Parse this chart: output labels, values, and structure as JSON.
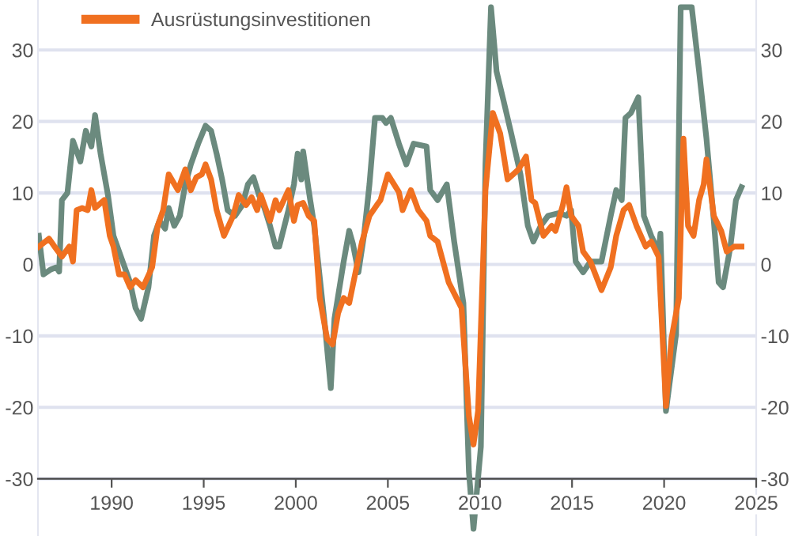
{
  "chart_data": {
    "type": "line",
    "xlim": [
      1986,
      2025
    ],
    "xticks": [
      1990,
      1995,
      2000,
      2005,
      2010,
      2015,
      2020,
      2025
    ],
    "ylim": [
      -38,
      37
    ],
    "yticks": [
      -30,
      -20,
      -10,
      0,
      10,
      20,
      30
    ],
    "y2lim": [
      -38,
      37
    ],
    "y2ticks": [
      -30,
      -20,
      -10,
      0,
      10,
      20,
      30
    ],
    "grid": "y",
    "legend": "top left",
    "line_style": "solid",
    "marker": "none",
    "series": [
      {
        "color": "#6b8a7e",
        "x": [
          1986.05,
          1986.3,
          1986.7,
          1987.0,
          1987.15,
          1987.3,
          1987.6,
          1987.9,
          1988.3,
          1988.6,
          1988.9,
          1989.1,
          1989.4,
          1989.8,
          1990.1,
          1990.6,
          1991.0,
          1991.3,
          1991.6,
          1992.0,
          1992.3,
          1992.6,
          1992.9,
          1993.1,
          1993.4,
          1993.7,
          1994.0,
          1994.3,
          1994.7,
          1995.1,
          1995.4,
          1995.7,
          1996.0,
          1996.3,
          1996.7,
          1997.1,
          1997.4,
          1997.7,
          1998.0,
          1998.3,
          1998.6,
          1998.9,
          1999.1,
          1999.6,
          1999.9,
          2000.1,
          2000.3,
          2000.4,
          2000.7,
          2001.0,
          2001.3,
          2001.6,
          2001.9,
          2002.1,
          2002.6,
          2002.9,
          2003.1,
          2003.4,
          2003.7,
          2004.0,
          2004.3,
          2004.7,
          2004.9,
          2005.16,
          2005.6,
          2006.0,
          2006.4,
          2007.1,
          2007.3,
          2007.7,
          2008.2,
          2008.6,
          2009.1,
          2009.4,
          2009.65,
          2010.05,
          2010.3,
          2010.6,
          2010.9,
          2011.3,
          2011.7,
          2012.2,
          2012.6,
          2012.9,
          2013.3,
          2013.7,
          2014.3,
          2014.7,
          2014.95,
          2015.2,
          2015.6,
          2016.0,
          2016.6,
          2017.1,
          2017.4,
          2017.7,
          2017.9,
          2018.2,
          2018.6,
          2018.9,
          2019.3,
          2019.7,
          2019.8,
          2020.1,
          2020.65,
          2020.9,
          2021.5,
          2021.9,
          2022.3,
          2022.7,
          2022.96,
          2023.2,
          2023.6,
          2023.9,
          2024.2
        ],
        "values": [
          4,
          -1.4,
          -0.7,
          -0.4,
          -1,
          9,
          10,
          17.3,
          14.4,
          18.7,
          16.5,
          20.9,
          15.5,
          9.7,
          4,
          0.4,
          -2.5,
          -6.1,
          -7.6,
          -3.2,
          4,
          6.1,
          5,
          7.9,
          5.4,
          6.8,
          11.2,
          14,
          16.9,
          19.4,
          18.7,
          15.5,
          11.9,
          7.6,
          6.8,
          8.3,
          11.2,
          12.2,
          9.7,
          7.9,
          5.4,
          2.5,
          2.5,
          7.6,
          11.2,
          15.5,
          11.9,
          15.8,
          10.4,
          5.4,
          -1.8,
          -9,
          -17.3,
          -7.6,
          0.4,
          4.7,
          2.9,
          -1.1,
          4,
          11.2,
          20.5,
          20.5,
          19.8,
          20.5,
          16.9,
          14,
          16.9,
          16.5,
          10.4,
          9,
          11.2,
          3.2,
          -5.4,
          -29,
          -37,
          -25.5,
          14,
          36,
          27,
          22.7,
          18.3,
          12.6,
          5.4,
          3.2,
          5.4,
          6.8,
          7.2,
          6.8,
          7.6,
          0.4,
          -1.1,
          0.4,
          0.4,
          6.8,
          10.4,
          9,
          20.5,
          21.2,
          23.4,
          6.8,
          4,
          1.8,
          4.3,
          -20.5,
          -9.7,
          36,
          36,
          27,
          17.6,
          6.1,
          -2.5,
          -3.2,
          2.5,
          9,
          10.8
        ]
      },
      {
        "name": "Ausrüstungsinvestitionen",
        "color": "#f07020",
        "x": [
          1986.05,
          1986.6,
          1986.9,
          1987.3,
          1987.7,
          1987.9,
          1988.1,
          1988.4,
          1988.7,
          1988.9,
          1989.1,
          1989.6,
          1989.9,
          1990.1,
          1990.4,
          1990.7,
          1991.0,
          1991.3,
          1991.7,
          1992.2,
          1992.5,
          1992.8,
          1993.1,
          1993.6,
          1994.0,
          1994.3,
          1994.6,
          1994.9,
          1995.1,
          1995.4,
          1995.7,
          1996.1,
          1996.6,
          1996.9,
          1997.3,
          1997.6,
          1997.9,
          1998.1,
          1998.6,
          1998.9,
          1999.1,
          1999.6,
          1999.9,
          2000.1,
          2000.4,
          2000.7,
          2001.0,
          2001.3,
          2001.7,
          2002.0,
          2002.3,
          2002.6,
          2002.9,
          2003.3,
          2003.6,
          2004.0,
          2004.4,
          2004.6,
          2005.0,
          2005.6,
          2005.8,
          2006.25,
          2006.65,
          2007.1,
          2007.3,
          2007.7,
          2008.3,
          2009.0,
          2009.4,
          2009.65,
          2009.9,
          2010.3,
          2010.7,
          2011.1,
          2011.5,
          2012.1,
          2012.5,
          2012.8,
          2013.0,
          2013.45,
          2013.9,
          2014.1,
          2014.5,
          2014.7,
          2014.95,
          2015.35,
          2015.6,
          2016.0,
          2016.6,
          2017.1,
          2017.4,
          2017.8,
          2018.1,
          2018.5,
          2019.0,
          2019.3,
          2019.7,
          2020.1,
          2020.4,
          2020.8,
          2021.05,
          2021.3,
          2021.6,
          2021.9,
          2022.15,
          2022.3,
          2022.7,
          2023.1,
          2023.4,
          2023.8,
          2024.2
        ],
        "values": [
          2.5,
          3.6,
          2.5,
          1.1,
          2.5,
          0.4,
          7.6,
          7.9,
          7.6,
          10.4,
          7.9,
          9,
          4,
          2.5,
          -1.4,
          -1.4,
          -3.2,
          -2.2,
          -3.2,
          -0.4,
          5.4,
          7.6,
          12.6,
          10.4,
          13.3,
          10.4,
          12.2,
          12.6,
          14,
          11.9,
          7.6,
          4,
          6.8,
          9.7,
          8.3,
          9.4,
          7.6,
          9.7,
          6.1,
          9,
          7.6,
          10.4,
          6.1,
          8.3,
          8.6,
          6.8,
          6.1,
          -4.7,
          -10.4,
          -11.2,
          -6.8,
          -4.7,
          -5.4,
          -0.4,
          3.2,
          6.8,
          8.3,
          9,
          12.6,
          10.1,
          7.6,
          10.4,
          7.6,
          6.1,
          4,
          3.2,
          -2.5,
          -6.1,
          -21.2,
          -25.2,
          -20.5,
          10.4,
          21.2,
          18.3,
          11.9,
          13.3,
          15.1,
          9,
          8.6,
          4,
          5.4,
          4.7,
          8.3,
          10.8,
          6.8,
          5.4,
          1.8,
          0.4,
          -3.6,
          -0.4,
          4,
          7.6,
          8.3,
          5.4,
          2.5,
          3.2,
          1.1,
          -19.8,
          -10.4,
          -4.7,
          17.6,
          5.4,
          4,
          9,
          11.2,
          14.7,
          6.8,
          4.7,
          1.8,
          2.5,
          2.5
        ]
      }
    ]
  }
}
